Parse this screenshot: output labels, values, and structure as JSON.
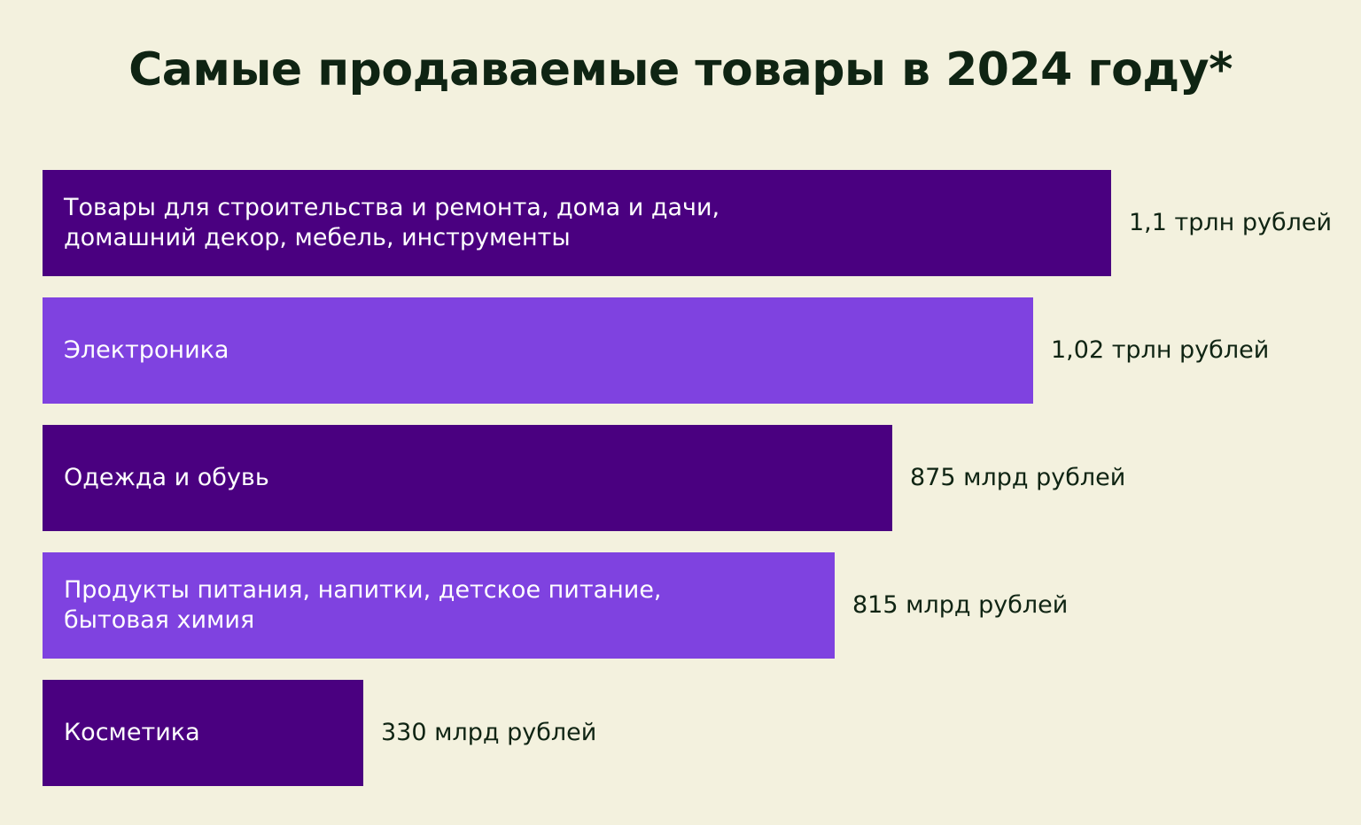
{
  "colors": {
    "background": "#f3f1de",
    "text": "#0f2413",
    "bar_dark": "#4a0080",
    "bar_light": "#7f42e0"
  },
  "chart_data": {
    "type": "bar",
    "orientation": "horizontal",
    "title": "Самые продаваемые товары в 2024 году*",
    "unit": "млрд рублей",
    "categories": [
      "Товары для строительства и ремонта, дома и дачи,\nдомашний декор, мебель, инструменты",
      "Электроника",
      "Одежда и обувь",
      "Продукты питания, напитки, детское питание,\nбытовая химия",
      "Косметика"
    ],
    "values": [
      1100,
      1020,
      875,
      815,
      330
    ],
    "value_labels": [
      "1,1 трлн рублей",
      "1,02 трлн рублей",
      "875 млрд рублей",
      "815 млрд рублей",
      "330 млрд рублей"
    ],
    "bar_colors": [
      "#4a0080",
      "#7f42e0",
      "#4a0080",
      "#7f42e0",
      "#4a0080"
    ],
    "axes_visible": false,
    "grid": false
  }
}
